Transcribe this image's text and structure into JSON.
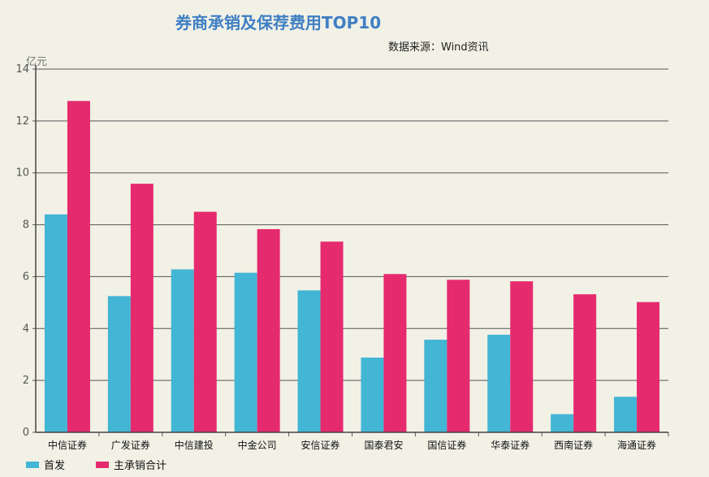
{
  "chart_data": {
    "type": "bar",
    "title": "券商承销及保荐费用TOP10",
    "source": "数据来源：Wind资讯",
    "ylabel": "亿元",
    "ylim": [
      0,
      14
    ],
    "yticks": [
      0,
      2,
      4,
      6,
      8,
      10,
      12,
      14
    ],
    "grid": true,
    "legend_position": "bottom-left",
    "categories": [
      "中信证券",
      "广发证券",
      "中信建投",
      "中金公司",
      "安信证券",
      "国泰君安",
      "国信证券",
      "华泰证券",
      "西南证券",
      "海通证券"
    ],
    "series": [
      {
        "name": "首发",
        "color": "#43b5d5",
        "values": [
          8.4,
          5.25,
          6.28,
          6.15,
          5.47,
          2.88,
          3.57,
          3.76,
          0.7,
          1.37
        ]
      },
      {
        "name": "主承销合计",
        "color": "#e52a6e",
        "values": [
          12.77,
          9.58,
          8.5,
          7.83,
          7.35,
          6.1,
          5.88,
          5.82,
          5.32,
          5.02
        ]
      }
    ]
  }
}
